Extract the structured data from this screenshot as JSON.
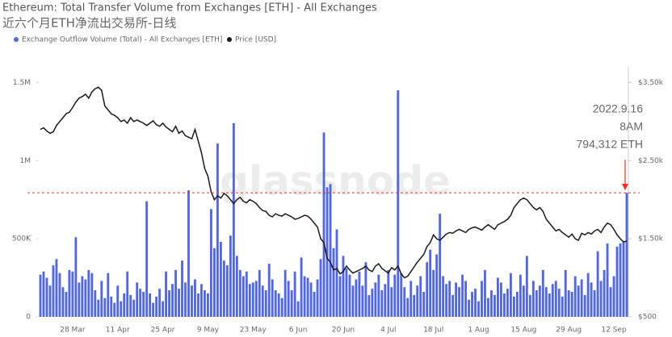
{
  "chart_data": {
    "type": "bar-line",
    "title": "Ethereum: Total Transfer Volume from Exchanges [ETH] - All Exchanges",
    "subtitle": "近六个月ETH净流出交易所-日线",
    "watermark": "glassnode",
    "annotation": [
      "2022.9.16",
      "8AM",
      "794,312 ETH"
    ],
    "annotation_color": "#e8302a",
    "annotation_value": 794312,
    "legend_position": "top-left",
    "grid": false,
    "categories": [
      null,
      null,
      null,
      null,
      null,
      null,
      null,
      null,
      null,
      null,
      "28 Mar",
      null,
      null,
      null,
      null,
      null,
      null,
      null,
      null,
      null,
      null,
      null,
      null,
      null,
      "11 Apr",
      null,
      null,
      null,
      null,
      null,
      null,
      null,
      null,
      null,
      null,
      null,
      null,
      null,
      "25 Apr",
      null,
      null,
      null,
      null,
      null,
      null,
      null,
      null,
      null,
      null,
      null,
      null,
      null,
      "9 May",
      null,
      null,
      null,
      null,
      null,
      null,
      null,
      null,
      null,
      null,
      null,
      null,
      null,
      "23 May",
      null,
      null,
      null,
      null,
      null,
      null,
      null,
      null,
      null,
      null,
      null,
      null,
      null,
      "6 Jun",
      null,
      null,
      null,
      null,
      null,
      null,
      null,
      null,
      null,
      null,
      null,
      null,
      null,
      "20 Jun",
      null,
      null,
      null,
      null,
      null,
      null,
      null,
      null,
      null,
      null,
      null,
      null,
      null,
      "4 Jul",
      null,
      null,
      null,
      null,
      null,
      null,
      null,
      null,
      null,
      null,
      null,
      null,
      null,
      "18 Jul",
      null,
      null,
      null,
      null,
      null,
      null,
      null,
      null,
      null,
      null,
      null,
      null,
      null,
      "1 Aug",
      null,
      null,
      null,
      null,
      null,
      null,
      null,
      null,
      null,
      null,
      null,
      null,
      null,
      "15 Aug",
      null,
      null,
      null,
      null,
      null,
      null,
      null,
      null,
      null,
      null,
      null,
      null,
      null,
      "29 Aug",
      null,
      null,
      null,
      null,
      null,
      null,
      null,
      null,
      null,
      null,
      null,
      null,
      null,
      "12 Sep",
      null,
      null,
      null,
      null
    ],
    "ylim": [
      0,
      1600000
    ],
    "yticks": [
      0,
      {
        "value": 500000,
        "label": "500K"
      },
      {
        "value": 1000000,
        "label": "1M"
      },
      {
        "value": 1500000,
        "label": "1.5M"
      }
    ],
    "y2lim": [
      500,
      3700
    ],
    "y2ticks": [
      {
        "value": 500,
        "label": "$500"
      },
      {
        "value": 1500,
        "label": "$1.50k"
      },
      {
        "value": 2500,
        "label": "$2.50k"
      },
      {
        "value": 3500,
        "label": "$3.50k"
      }
    ],
    "series": [
      {
        "name": "Exchange Outflow Volume (Total) - All Exchanges [ETH]",
        "type": "bar",
        "color": "#5468de",
        "values": [
          270000,
          290000,
          250000,
          200000,
          330000,
          370000,
          280000,
          190000,
          160000,
          300000,
          290000,
          510000,
          220000,
          260000,
          240000,
          300000,
          280000,
          170000,
          110000,
          230000,
          120000,
          280000,
          130000,
          90000,
          200000,
          100000,
          150000,
          290000,
          140000,
          110000,
          220000,
          180000,
          160000,
          740000,
          150000,
          90000,
          130000,
          180000,
          100000,
          290000,
          170000,
          210000,
          300000,
          180000,
          360000,
          220000,
          810000,
          200000,
          240000,
          150000,
          210000,
          170000,
          150000,
          690000,
          440000,
          1110000,
          480000,
          360000,
          330000,
          520000,
          1240000,
          390000,
          300000,
          260000,
          290000,
          210000,
          220000,
          230000,
          300000,
          200000,
          170000,
          340000,
          240000,
          170000,
          150000,
          120000,
          300000,
          230000,
          170000,
          290000,
          100000,
          380000,
          260000,
          250000,
          220000,
          160000,
          240000,
          370000,
          1180000,
          830000,
          850000,
          440000,
          560000,
          260000,
          390000,
          310000,
          270000,
          200000,
          240000,
          290000,
          200000,
          350000,
          140000,
          180000,
          220000,
          270000,
          170000,
          210000,
          300000,
          190000,
          270000,
          1450000,
          280000,
          190000,
          120000,
          230000,
          140000,
          200000,
          260000,
          160000,
          350000,
          430000,
          300000,
          400000,
          660000,
          260000,
          210000,
          230000,
          140000,
          220000,
          190000,
          270000,
          230000,
          110000,
          160000,
          180000,
          100000,
          230000,
          300000,
          120000,
          170000,
          140000,
          250000,
          220000,
          150000,
          180000,
          280000,
          130000,
          160000,
          270000,
          200000,
          390000,
          140000,
          230000,
          170000,
          200000,
          300000,
          190000,
          150000,
          210000,
          230000,
          180000,
          130000,
          300000,
          170000,
          160000,
          260000,
          200000,
          240000,
          140000,
          280000,
          220000,
          170000,
          420000,
          230000,
          300000,
          470000,
          190000,
          260000,
          450000,
          470000,
          480000,
          794312
        ]
      },
      {
        "name": "Price [USD]",
        "type": "line",
        "axis": "y2",
        "color": "#1a1a1a",
        "values": [
          2900,
          2920,
          2880,
          2850,
          2870,
          2950,
          3000,
          3050,
          3100,
          3120,
          3180,
          3250,
          3300,
          3320,
          3350,
          3300,
          3380,
          3420,
          3440,
          3400,
          3200,
          3150,
          3100,
          3080,
          3050,
          3000,
          3020,
          2980,
          3050,
          3000,
          3020,
          3000,
          2980,
          2950,
          2980,
          3010,
          2960,
          2940,
          2980,
          2930,
          2900,
          2870,
          2940,
          2850,
          2880,
          2820,
          2800,
          2780,
          2900,
          2750,
          2600,
          2400,
          2300,
          2100,
          2000,
          2050,
          2020,
          2080,
          2050,
          2000,
          1950,
          2000,
          2030,
          1980,
          1960,
          2000,
          1980,
          1950,
          1900,
          1860,
          1850,
          1800,
          1780,
          1820,
          1800,
          1790,
          1820,
          1800,
          1780,
          1750,
          1760,
          1780,
          1800,
          1790,
          1750,
          1700,
          1650,
          1500,
          1450,
          1250,
          1200,
          1100,
          1120,
          1050,
          1080,
          1150,
          1100,
          1060,
          1080,
          1100,
          1120,
          1150,
          1100,
          1080,
          1150,
          1180,
          1120,
          1090,
          1060,
          1130,
          1100,
          1150,
          1050,
          1000,
          1020,
          1080,
          1140,
          1200,
          1250,
          1300,
          1400,
          1450,
          1550,
          1500,
          1480,
          1520,
          1560,
          1580,
          1570,
          1600,
          1620,
          1600,
          1580,
          1620,
          1640,
          1650,
          1630,
          1610,
          1650,
          1680,
          1650,
          1620,
          1680,
          1700,
          1720,
          1750,
          1800,
          1900,
          1950,
          2000,
          2020,
          2000,
          1950,
          1900,
          1870,
          1900,
          1850,
          1750,
          1700,
          1650,
          1600,
          1620,
          1580,
          1550,
          1520,
          1560,
          1500,
          1480,
          1570,
          1550,
          1580,
          1560,
          1600,
          1620,
          1580,
          1650,
          1700,
          1680,
          1620,
          1550,
          1500,
          1460,
          1470
        ]
      }
    ]
  }
}
